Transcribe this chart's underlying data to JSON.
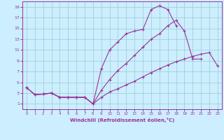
{
  "xlabel": "Windchill (Refroidissement éolien,°C)",
  "bg_color": "#cceeff",
  "line_color": "#993399",
  "grid_color": "#99cccc",
  "xlim": [
    -0.5,
    23.5
  ],
  "ylim": [
    0,
    20
  ],
  "xticks": [
    0,
    1,
    2,
    3,
    4,
    5,
    6,
    7,
    8,
    9,
    10,
    11,
    12,
    13,
    14,
    15,
    16,
    17,
    18,
    19,
    20,
    21,
    22,
    23
  ],
  "yticks": [
    1,
    3,
    5,
    7,
    9,
    11,
    13,
    15,
    17,
    19
  ],
  "curve1_x": [
    0,
    1,
    2,
    3,
    4,
    5,
    6,
    7,
    8,
    9,
    10,
    11,
    12,
    13,
    14,
    15,
    16,
    17,
    18
  ],
  "curve1_y": [
    4.0,
    2.7,
    2.8,
    3.0,
    2.2,
    2.2,
    2.2,
    2.2,
    1.0,
    7.5,
    11.0,
    12.5,
    14.0,
    14.5,
    14.8,
    18.5,
    19.2,
    18.5,
    15.5
  ],
  "curve2_x": [
    0,
    1,
    2,
    3,
    4,
    5,
    6,
    7,
    8,
    9,
    10,
    11,
    12,
    13,
    14,
    15,
    16,
    17,
    18,
    19,
    20,
    21
  ],
  "curve2_y": [
    4.0,
    2.7,
    2.8,
    3.0,
    2.2,
    2.2,
    2.2,
    2.2,
    1.0,
    3.5,
    5.5,
    7.2,
    8.5,
    10.0,
    11.5,
    13.0,
    14.0,
    15.5,
    16.5,
    14.5,
    9.3,
    9.3
  ],
  "curve3_x": [
    0,
    1,
    2,
    3,
    4,
    5,
    6,
    7,
    8,
    9,
    10,
    11,
    12,
    13,
    14,
    15,
    16,
    17,
    18,
    19,
    20,
    21,
    22,
    23
  ],
  "curve3_y": [
    4.0,
    2.7,
    2.8,
    3.0,
    2.2,
    2.2,
    2.2,
    2.2,
    1.0,
    2.2,
    3.2,
    3.8,
    4.5,
    5.2,
    6.0,
    6.8,
    7.5,
    8.2,
    8.8,
    9.3,
    9.8,
    10.2,
    10.5,
    8.0
  ]
}
